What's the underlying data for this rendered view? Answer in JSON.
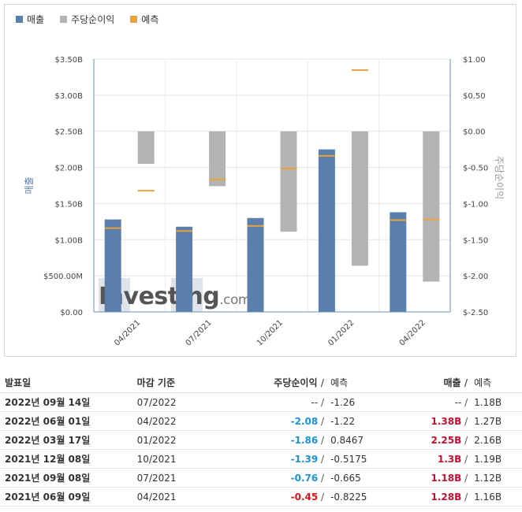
{
  "legend": {
    "revenue": "매출",
    "eps": "주당순이익",
    "forecast": "예측"
  },
  "colors": {
    "revenue": "#5b7fac",
    "eps": "#b3b3b3",
    "forecast": "#e8a33d",
    "negative_blue": "#1a93d8",
    "negative_red": "#e0121b",
    "positive_red": "#c8102e"
  },
  "watermark": {
    "main": "Investing",
    "suffix": ".com"
  },
  "chart_data": {
    "type": "bar",
    "categories": [
      "04/2021",
      "07/2021",
      "10/2021",
      "01/2022",
      "04/2022"
    ],
    "left_axis": {
      "label": "매출",
      "ticks": [
        "$0.00",
        "$500.00M",
        "$1.00B",
        "$1.50B",
        "$2.00B",
        "$2.50B",
        "$3.00B",
        "$3.50B"
      ],
      "ylim": [
        0,
        3.5
      ]
    },
    "right_axis": {
      "label": "주당순이익",
      "ticks": [
        "$-2.50",
        "$-2.00",
        "$-1.50",
        "$-1.00",
        "$-0.50",
        "$0.00",
        "$0.50",
        "$1.00"
      ],
      "ylim": [
        -2.5,
        1.0
      ]
    },
    "series": [
      {
        "name": "매출",
        "axis": "left",
        "values": [
          1.28,
          1.18,
          1.3,
          2.25,
          1.38
        ]
      },
      {
        "name": "매출 예측",
        "axis": "left",
        "values": [
          1.16,
          1.12,
          1.19,
          2.16,
          1.27
        ]
      },
      {
        "name": "주당순이익",
        "axis": "right",
        "values": [
          -0.45,
          -0.76,
          -1.39,
          -1.86,
          -2.08
        ]
      },
      {
        "name": "주당순이익 예측",
        "axis": "right",
        "values": [
          -0.8225,
          -0.665,
          -0.5175,
          0.8467,
          -1.22
        ]
      }
    ],
    "grid": true,
    "legend_position": "top-left"
  },
  "table": {
    "headers": {
      "date": "발표일",
      "period": "마감 기준",
      "eps": "주당순이익",
      "eps_forecast": "예측",
      "revenue": "매출",
      "revenue_forecast": "예측"
    },
    "rows": [
      {
        "date": "2022년 09월 14일",
        "period": "07/2022",
        "eps": "--",
        "eps_forecast": "-1.26",
        "revenue": "--",
        "revenue_forecast": "1.18B",
        "eps_style": "plain",
        "rev_style": "plain"
      },
      {
        "date": "2022년 06월 01일",
        "period": "04/2022",
        "eps": "-2.08",
        "eps_forecast": "-1.22",
        "revenue": "1.38B",
        "revenue_forecast": "1.27B",
        "eps_style": "neg",
        "rev_style": "pos-red"
      },
      {
        "date": "2022년 03월 17일",
        "period": "01/2022",
        "eps": "-1.86",
        "eps_forecast": "0.8467",
        "revenue": "2.25B",
        "revenue_forecast": "2.16B",
        "eps_style": "neg",
        "rev_style": "pos-red"
      },
      {
        "date": "2021년 12월 08일",
        "period": "10/2021",
        "eps": "-1.39",
        "eps_forecast": "-0.5175",
        "revenue": "1.3B",
        "revenue_forecast": "1.19B",
        "eps_style": "neg",
        "rev_style": "pos-red"
      },
      {
        "date": "2021년 09월 08일",
        "period": "07/2021",
        "eps": "-0.76",
        "eps_forecast": "-0.665",
        "revenue": "1.18B",
        "revenue_forecast": "1.12B",
        "eps_style": "neg",
        "rev_style": "pos-red"
      },
      {
        "date": "2021년 06월 09일",
        "period": "04/2021",
        "eps": "-0.45",
        "eps_forecast": "-0.8225",
        "revenue": "1.28B",
        "revenue_forecast": "1.16B",
        "eps_style": "neg-red",
        "rev_style": "pos-red"
      }
    ]
  }
}
